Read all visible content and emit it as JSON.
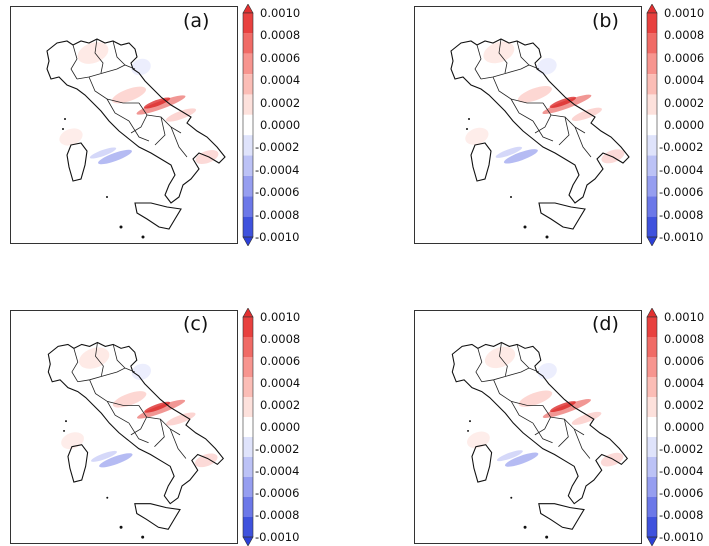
{
  "panels": [
    {
      "label": "(a)"
    },
    {
      "label": "(b)"
    },
    {
      "label": "(c)"
    },
    {
      "label": "(d)"
    }
  ],
  "colorbar": {
    "ticks": [
      "0.0010",
      "0.0008",
      "0.0006",
      "0.0004",
      "0.0002",
      "0.0000",
      "-0.0002",
      "-0.0004",
      "-0.0006",
      "-0.0008",
      "-0.0010"
    ],
    "colors": [
      "#e8413f",
      "#f06b66",
      "#f7958f",
      "#fbbdb6",
      "#fde1dc",
      "#ffffff",
      "#dfe3fb",
      "#bcc2f6",
      "#969ef0",
      "#6c78e8",
      "#3f52dd"
    ],
    "extend_max_color": "#e23030",
    "extend_min_color": "#2c3fd8"
  }
}
